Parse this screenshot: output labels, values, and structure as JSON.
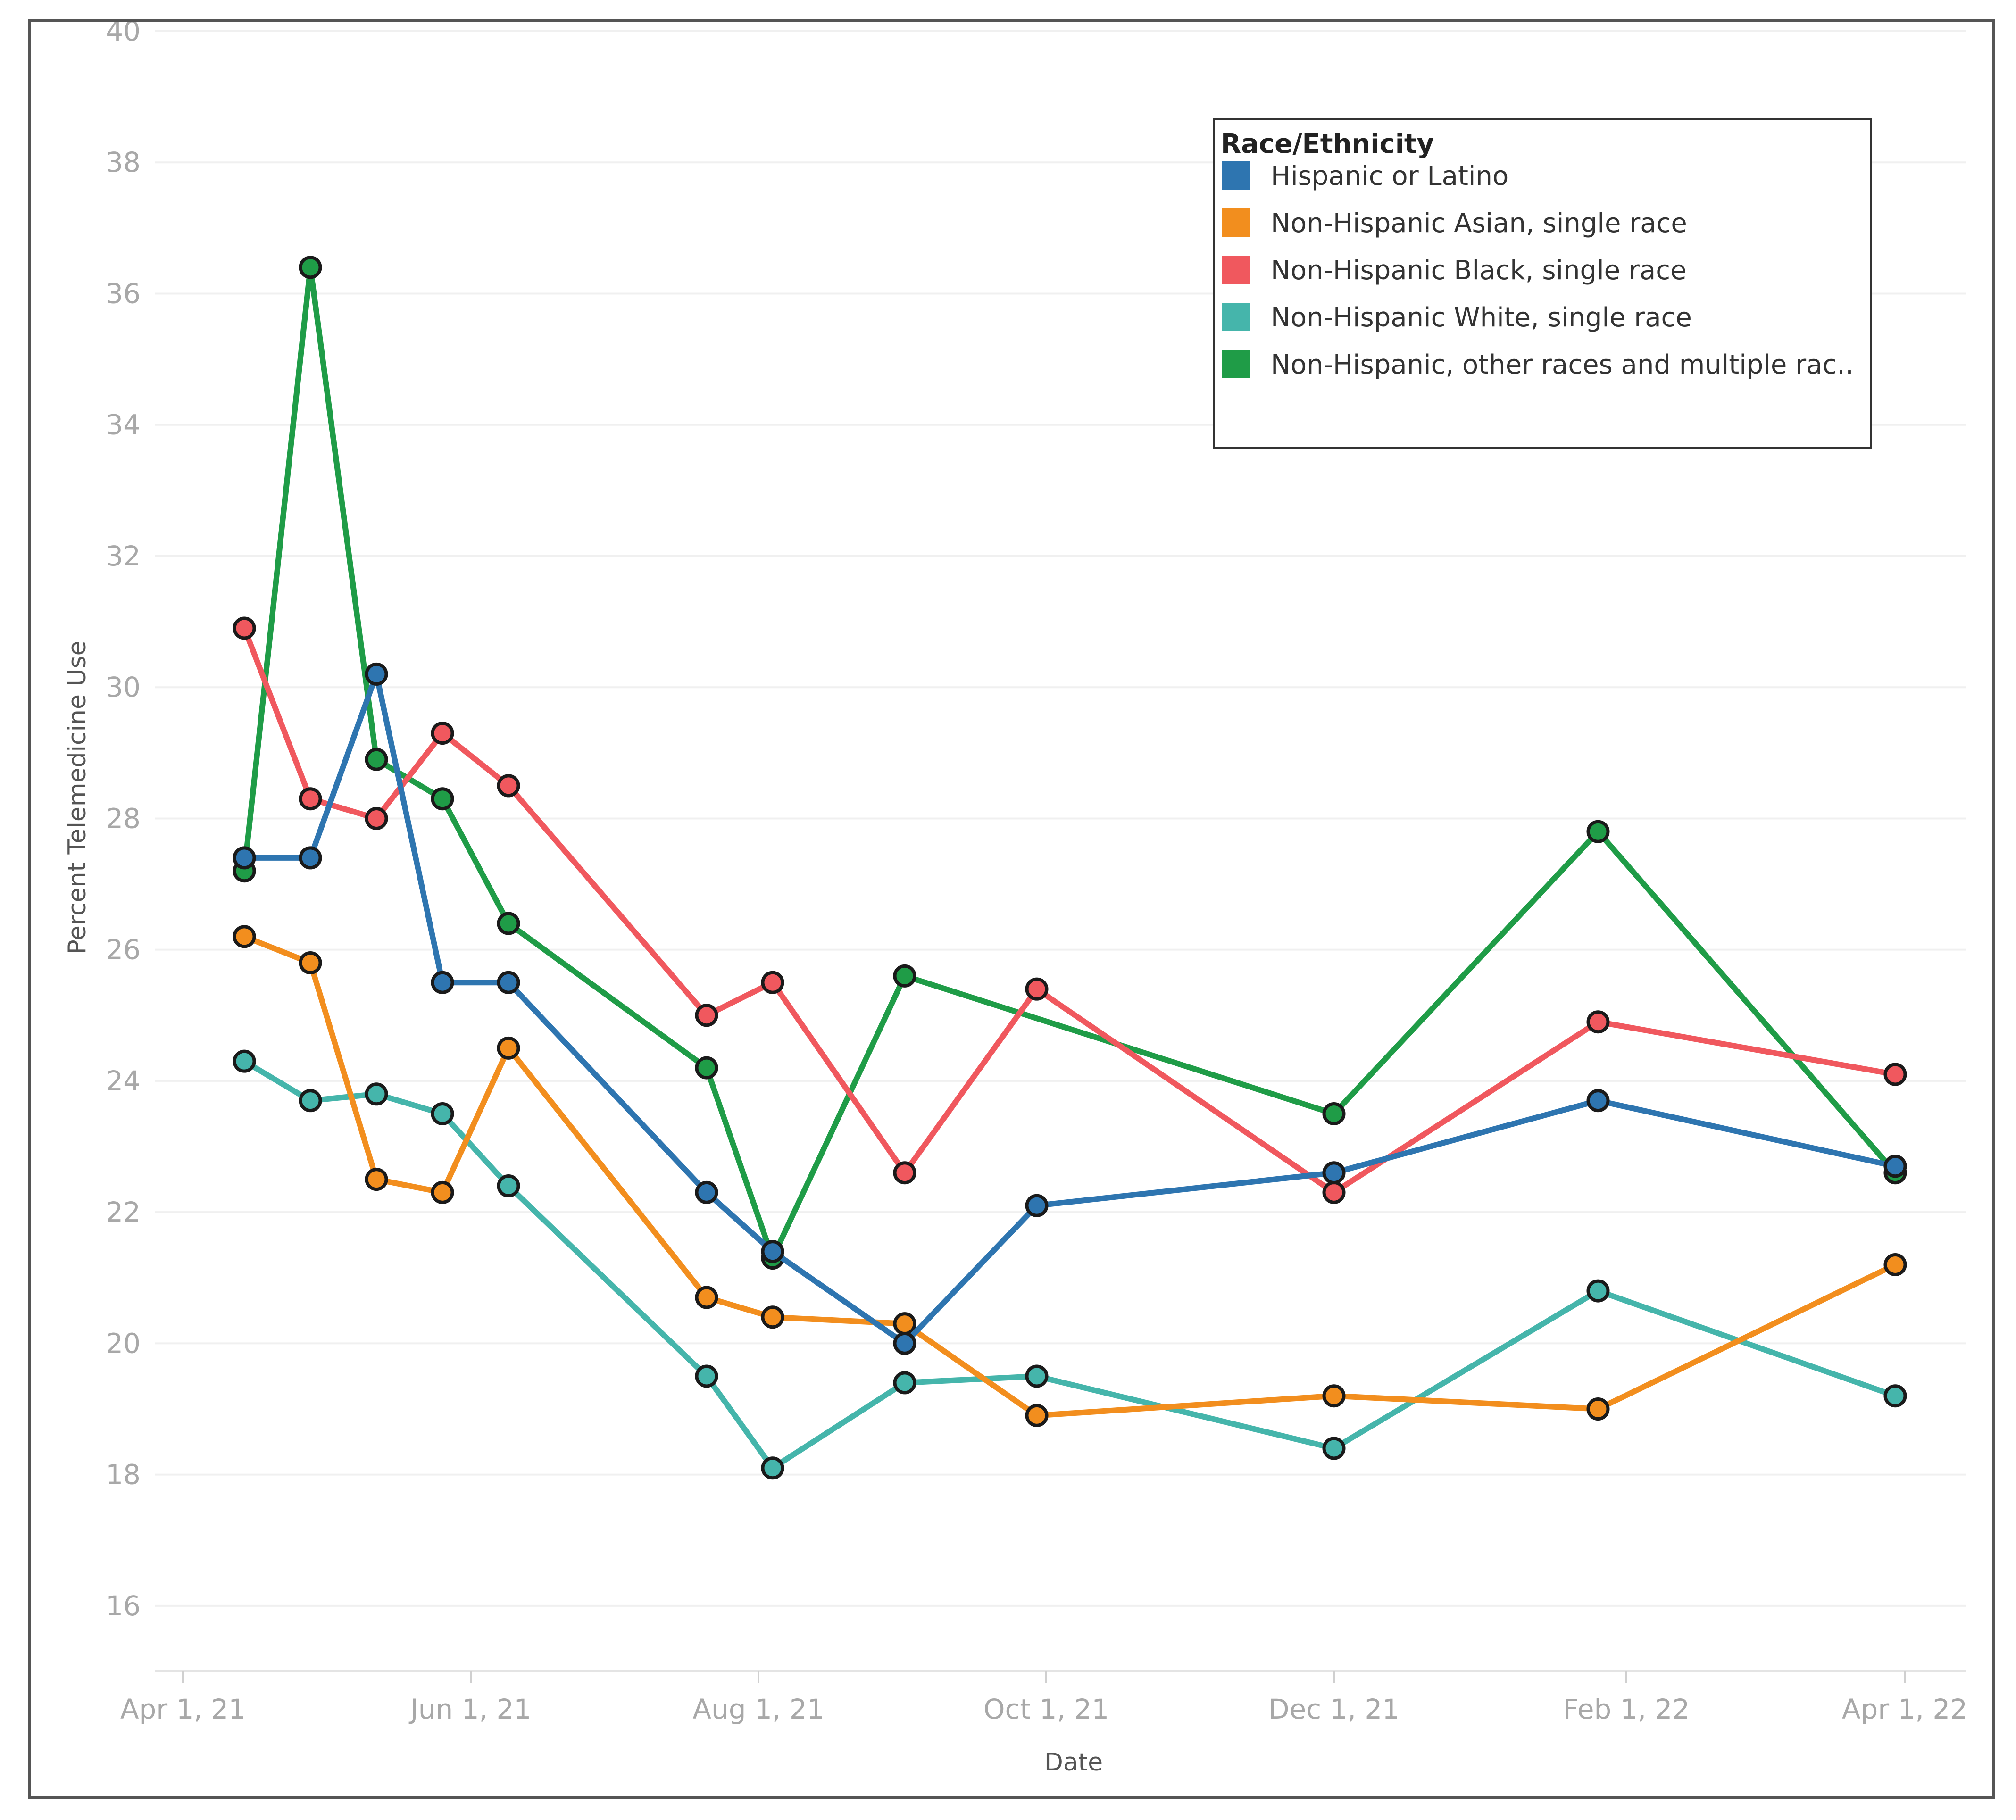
{
  "chart_data": {
    "type": "line",
    "title": "",
    "xlabel": "Date",
    "ylabel": "Percent Telemedicine Use",
    "ylim": [
      15,
      40
    ],
    "yticks": [
      16,
      18,
      20,
      22,
      24,
      26,
      28,
      30,
      32,
      34,
      36,
      38,
      40
    ],
    "grid": true,
    "x_ticks": [
      {
        "day": 0,
        "label": "Apr 1, 21"
      },
      {
        "day": 61,
        "label": "Jun 1, 21"
      },
      {
        "day": 122,
        "label": "Aug 1, 21"
      },
      {
        "day": 183,
        "label": "Oct 1, 21"
      },
      {
        "day": 244,
        "label": "Dec 1, 21"
      },
      {
        "day": 306,
        "label": "Feb 1, 22"
      },
      {
        "day": 365,
        "label": "Apr 1, 22"
      }
    ],
    "x_day_range": [
      -6,
      378
    ],
    "legend": {
      "title": "Race/Ethnicity",
      "position": "top-right"
    },
    "series": [
      {
        "name": "Hispanic or Latino",
        "color": "#2e75b0",
        "points": [
          [
            13,
            27.4
          ],
          [
            27,
            27.4
          ],
          [
            41,
            30.2
          ],
          [
            55,
            25.5
          ],
          [
            69,
            25.5
          ],
          [
            111,
            22.3
          ],
          [
            125,
            21.4
          ],
          [
            153,
            20.0
          ],
          [
            181,
            22.1
          ],
          [
            244,
            22.6
          ],
          [
            300,
            23.7
          ],
          [
            363,
            22.7
          ]
        ]
      },
      {
        "name": "Non-Hispanic Asian, single race",
        "color": "#f28e1e",
        "points": [
          [
            13,
            26.2
          ],
          [
            27,
            25.8
          ],
          [
            41,
            22.5
          ],
          [
            55,
            22.3
          ],
          [
            69,
            24.5
          ],
          [
            111,
            20.7
          ],
          [
            125,
            20.4
          ],
          [
            153,
            20.3
          ],
          [
            181,
            18.9
          ],
          [
            244,
            19.2
          ],
          [
            300,
            19.0
          ],
          [
            363,
            21.2
          ]
        ]
      },
      {
        "name": "Non-Hispanic Black, single race",
        "color": "#f0585e",
        "points": [
          [
            13,
            30.9
          ],
          [
            27,
            28.3
          ],
          [
            41,
            28.0
          ],
          [
            55,
            29.3
          ],
          [
            69,
            28.5
          ],
          [
            111,
            25.0
          ],
          [
            125,
            25.5
          ],
          [
            153,
            22.6
          ],
          [
            181,
            25.4
          ],
          [
            244,
            22.3
          ],
          [
            300,
            24.9
          ],
          [
            363,
            24.1
          ]
        ]
      },
      {
        "name": "Non-Hispanic White, single race",
        "color": "#45b5ab",
        "points": [
          [
            13,
            24.3
          ],
          [
            27,
            23.7
          ],
          [
            41,
            23.8
          ],
          [
            55,
            23.5
          ],
          [
            69,
            22.4
          ],
          [
            111,
            19.5
          ],
          [
            125,
            18.1
          ],
          [
            153,
            19.4
          ],
          [
            181,
            19.5
          ],
          [
            244,
            18.4
          ],
          [
            300,
            20.8
          ],
          [
            363,
            19.2
          ]
        ]
      },
      {
        "name": "Non-Hispanic, other races and multiple rac..",
        "color": "#1f9c47",
        "points": [
          [
            13,
            27.2
          ],
          [
            27,
            36.4
          ],
          [
            41,
            28.9
          ],
          [
            55,
            28.3
          ],
          [
            69,
            26.4
          ],
          [
            111,
            24.2
          ],
          [
            125,
            21.3
          ],
          [
            153,
            25.6
          ],
          [
            244,
            23.5
          ],
          [
            300,
            27.8
          ],
          [
            363,
            22.6
          ]
        ]
      }
    ],
    "draw_order": [
      4,
      3,
      1,
      2,
      0
    ]
  }
}
